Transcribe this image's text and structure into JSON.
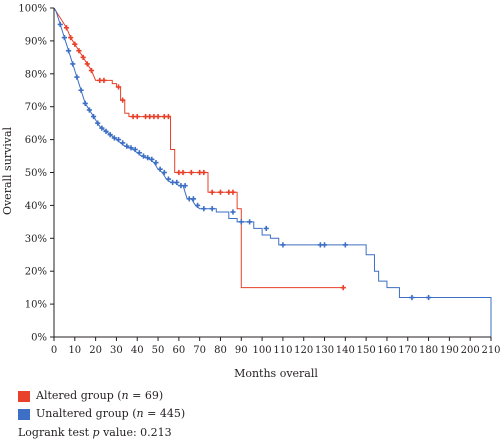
{
  "chart_data": {
    "type": "line",
    "subtype": "kaplan-meier",
    "title": "",
    "xlabel": "Months overall",
    "ylabel": "Overall survival",
    "xlim": [
      0,
      210
    ],
    "ylim": [
      0,
      100
    ],
    "x_ticks": [
      0,
      10,
      20,
      30,
      40,
      50,
      60,
      70,
      80,
      90,
      100,
      110,
      120,
      130,
      140,
      150,
      160,
      170,
      180,
      190,
      200,
      210
    ],
    "y_ticks": [
      0,
      10,
      20,
      30,
      40,
      50,
      60,
      70,
      80,
      90,
      100
    ],
    "y_tick_labels": [
      "0%",
      "10%",
      "20%",
      "30%",
      "40%",
      "50%",
      "60%",
      "70%",
      "80%",
      "90%",
      "100%"
    ],
    "grid": false,
    "legend_position": "bottom-left",
    "series": [
      {
        "id": "altered",
        "color": "#e8402a",
        "steps": [
          [
            0,
            100
          ],
          [
            2,
            98
          ],
          [
            4,
            96
          ],
          [
            6,
            94
          ],
          [
            8,
            91
          ],
          [
            10,
            89
          ],
          [
            12,
            87
          ],
          [
            14,
            85
          ],
          [
            16,
            83
          ],
          [
            18,
            81
          ],
          [
            20,
            78
          ],
          [
            28,
            78
          ],
          [
            28,
            77
          ],
          [
            30,
            77
          ],
          [
            30,
            76
          ],
          [
            32,
            76
          ],
          [
            32,
            72
          ],
          [
            34,
            72
          ],
          [
            34,
            68
          ],
          [
            36,
            68
          ],
          [
            36,
            67
          ],
          [
            56,
            67
          ],
          [
            56,
            57
          ],
          [
            58,
            57
          ],
          [
            58,
            50
          ],
          [
            74,
            50
          ],
          [
            74,
            44
          ],
          [
            88,
            44
          ],
          [
            88,
            39
          ],
          [
            90,
            39
          ],
          [
            90,
            15
          ],
          [
            140,
            15
          ]
        ],
        "censors": [
          [
            6,
            94
          ],
          [
            8,
            91
          ],
          [
            10,
            89
          ],
          [
            12,
            87
          ],
          [
            14,
            85
          ],
          [
            16,
            83
          ],
          [
            18,
            81
          ],
          [
            22,
            78
          ],
          [
            24,
            78
          ],
          [
            31,
            76
          ],
          [
            33,
            72
          ],
          [
            38,
            67
          ],
          [
            40,
            67
          ],
          [
            44,
            67
          ],
          [
            46,
            67
          ],
          [
            48,
            67
          ],
          [
            50,
            67
          ],
          [
            53,
            67
          ],
          [
            55,
            67
          ],
          [
            60,
            50
          ],
          [
            62,
            50
          ],
          [
            66,
            50
          ],
          [
            70,
            50
          ],
          [
            72,
            50
          ],
          [
            76,
            44
          ],
          [
            80,
            44
          ],
          [
            84,
            44
          ],
          [
            86,
            44
          ],
          [
            139,
            15
          ]
        ]
      },
      {
        "id": "unaltered",
        "color": "#3d6fc4",
        "steps": [
          [
            0,
            100
          ],
          [
            1,
            99
          ],
          [
            2,
            97
          ],
          [
            3,
            95
          ],
          [
            4,
            93
          ],
          [
            5,
            91
          ],
          [
            6,
            89
          ],
          [
            7,
            87
          ],
          [
            8,
            85
          ],
          [
            9,
            83
          ],
          [
            10,
            81
          ],
          [
            11,
            79
          ],
          [
            12,
            77
          ],
          [
            13,
            75
          ],
          [
            14,
            73
          ],
          [
            15,
            71
          ],
          [
            16,
            70
          ],
          [
            17,
            69
          ],
          [
            18,
            68
          ],
          [
            19,
            67
          ],
          [
            20,
            66
          ],
          [
            21,
            65
          ],
          [
            22,
            64
          ],
          [
            23,
            63.5
          ],
          [
            24,
            63
          ],
          [
            25,
            62.5
          ],
          [
            26,
            62
          ],
          [
            27,
            61.5
          ],
          [
            28,
            61
          ],
          [
            29,
            60.5
          ],
          [
            30,
            60
          ],
          [
            32,
            59
          ],
          [
            34,
            58
          ],
          [
            36,
            57.5
          ],
          [
            38,
            57
          ],
          [
            40,
            56
          ],
          [
            42,
            55
          ],
          [
            44,
            54.5
          ],
          [
            46,
            54
          ],
          [
            48,
            53
          ],
          [
            50,
            51
          ],
          [
            52,
            50
          ],
          [
            54,
            48
          ],
          [
            56,
            47
          ],
          [
            58,
            47
          ],
          [
            60,
            46
          ],
          [
            62,
            46
          ],
          [
            64,
            42
          ],
          [
            66,
            42
          ],
          [
            68,
            40
          ],
          [
            70,
            39
          ],
          [
            78,
            39
          ],
          [
            78,
            38
          ],
          [
            84,
            38
          ],
          [
            84,
            36
          ],
          [
            88,
            36
          ],
          [
            88,
            35
          ],
          [
            96,
            35
          ],
          [
            96,
            33
          ],
          [
            100,
            33
          ],
          [
            100,
            31
          ],
          [
            104,
            31
          ],
          [
            104,
            30
          ],
          [
            108,
            30
          ],
          [
            108,
            28
          ],
          [
            150,
            28
          ],
          [
            150,
            25
          ],
          [
            154,
            25
          ],
          [
            154,
            20
          ],
          [
            156,
            20
          ],
          [
            156,
            17
          ],
          [
            160,
            17
          ],
          [
            160,
            15
          ],
          [
            166,
            15
          ],
          [
            166,
            12
          ],
          [
            210,
            12
          ],
          [
            210,
            0
          ]
        ],
        "censors": [
          [
            3,
            95
          ],
          [
            5,
            91
          ],
          [
            7,
            87
          ],
          [
            9,
            83
          ],
          [
            11,
            79
          ],
          [
            13,
            75
          ],
          [
            15,
            71
          ],
          [
            17,
            69
          ],
          [
            19,
            67
          ],
          [
            21,
            65
          ],
          [
            23,
            63.5
          ],
          [
            25,
            62.5
          ],
          [
            27,
            61.5
          ],
          [
            29,
            60.5
          ],
          [
            31,
            60
          ],
          [
            33,
            59
          ],
          [
            35,
            58
          ],
          [
            37,
            57.5
          ],
          [
            39,
            57
          ],
          [
            41,
            56
          ],
          [
            43,
            55
          ],
          [
            45,
            54.5
          ],
          [
            47,
            54
          ],
          [
            49,
            53
          ],
          [
            51,
            51
          ],
          [
            53,
            50
          ],
          [
            55,
            48
          ],
          [
            57,
            47
          ],
          [
            59,
            47
          ],
          [
            61,
            46
          ],
          [
            63,
            46
          ],
          [
            65,
            42
          ],
          [
            67,
            42
          ],
          [
            69,
            40
          ],
          [
            72,
            39
          ],
          [
            76,
            39
          ],
          [
            86,
            38
          ],
          [
            90,
            35
          ],
          [
            94,
            35
          ],
          [
            102,
            33
          ],
          [
            110,
            28
          ],
          [
            128,
            28
          ],
          [
            130,
            28
          ],
          [
            140,
            28
          ],
          [
            172,
            12
          ],
          [
            180,
            12
          ]
        ]
      }
    ]
  },
  "legend": {
    "altered_prefix": "Altered group (",
    "altered_n_symbol": "n",
    "altered_suffix": " = 69)",
    "unaltered_prefix": "Unaltered group (",
    "unaltered_n_symbol": "n",
    "unaltered_suffix": " = 445)",
    "logrank_prefix": "Logrank test ",
    "logrank_p_symbol": "p",
    "logrank_suffix": " value: 0.213"
  }
}
